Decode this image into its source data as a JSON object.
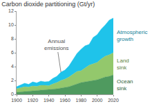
{
  "chart_data": {
    "type": "area",
    "title": "Carbon dioxide partitioning (Gt/yr)",
    "stacked": true,
    "grid": false,
    "x": [
      1900,
      1905,
      1910,
      1915,
      1920,
      1925,
      1930,
      1935,
      1940,
      1945,
      1950,
      1955,
      1960,
      1965,
      1970,
      1975,
      1980,
      1985,
      1990,
      1995,
      2000,
      2005,
      2010,
      2015,
      2020
    ],
    "series": [
      {
        "name": "Ocean sink",
        "color": "#4f9a5f",
        "values": [
          0.3,
          0.35,
          0.4,
          0.45,
          0.5,
          0.55,
          0.6,
          0.6,
          0.65,
          0.7,
          0.8,
          0.9,
          1.0,
          1.1,
          1.3,
          1.5,
          1.7,
          1.8,
          1.9,
          2.0,
          2.1,
          2.3,
          2.5,
          2.6,
          2.8
        ]
      },
      {
        "name": "Land sink",
        "color": "#93c86c",
        "values": [
          0.5,
          0.6,
          0.7,
          0.6,
          0.7,
          0.6,
          0.7,
          0.7,
          0.6,
          0.8,
          0.9,
          1.1,
          1.2,
          1.4,
          1.6,
          1.8,
          1.7,
          2.0,
          2.3,
          2.4,
          2.5,
          2.8,
          3.0,
          3.1,
          3.2
        ]
      },
      {
        "name": "Atmospheric growth",
        "color": "#1fc3ea",
        "values": [
          0.3,
          0.4,
          0.5,
          0.4,
          0.6,
          0.5,
          0.6,
          0.5,
          0.6,
          0.8,
          0.9,
          1.2,
          1.3,
          1.6,
          2.1,
          2.6,
          3.1,
          3.2,
          3.0,
          3.8,
          4.0,
          4.3,
          4.5,
          5.0,
          5.0
        ]
      }
    ],
    "annotations": [
      {
        "text": "Annual emissions"
      }
    ],
    "xlim": [
      1900,
      2020
    ],
    "xticks": [
      1900,
      1920,
      1940,
      1960,
      1980,
      2000,
      2020
    ],
    "ylim": [
      0,
      12
    ],
    "yticks": [
      0,
      2,
      4,
      6,
      8,
      10,
      12
    ]
  }
}
